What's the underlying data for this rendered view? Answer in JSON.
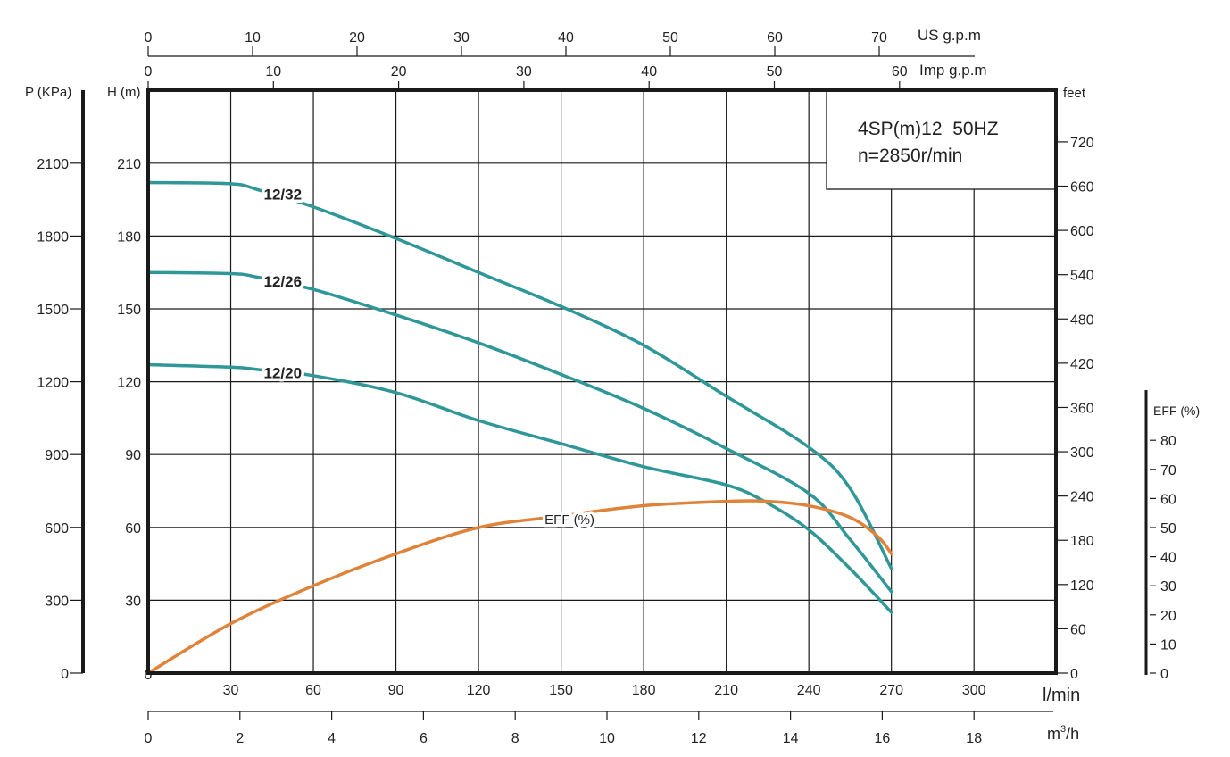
{
  "chart_data": {
    "type": "line",
    "info_box": {
      "line1": "4SP(m)12  50HZ",
      "line2": "n=2850r/min"
    },
    "x_axis": {
      "label": "l/min",
      "range": [
        0,
        330
      ],
      "ticks": [
        30,
        60,
        90,
        120,
        150,
        180,
        210,
        240,
        270,
        300
      ],
      "zero_label": "0"
    },
    "x_axis_m3h": {
      "label": "m³/h",
      "label_base": "m",
      "label_sup": "3",
      "label_tail": "/h",
      "ticks": [
        0,
        2,
        4,
        6,
        8,
        10,
        12,
        14,
        16,
        18
      ]
    },
    "x_axis_us_gpm": {
      "label": "US g.p.m",
      "ticks": [
        0,
        10,
        20,
        30,
        40,
        50,
        60,
        70
      ]
    },
    "x_axis_imp_gpm": {
      "label": "Imp g.p.m",
      "ticks": [
        0,
        10,
        20,
        30,
        40,
        50,
        60
      ]
    },
    "y_axis_head": {
      "label": "H (m)",
      "range": [
        0,
        240
      ],
      "ticks": [
        30,
        60,
        90,
        120,
        150,
        180,
        210
      ],
      "grid": true
    },
    "y_axis_pressure": {
      "label": "P (KPa)",
      "ticks": [
        0,
        300,
        600,
        900,
        1200,
        1500,
        1800,
        2100
      ]
    },
    "y_axis_feet": {
      "label": "feet",
      "ticks": [
        0,
        60,
        120,
        180,
        240,
        300,
        360,
        420,
        480,
        540,
        600,
        660,
        720
      ]
    },
    "y_axis_eff": {
      "label": "EFF (%)",
      "ticks": [
        0,
        10,
        20,
        30,
        40,
        50,
        60,
        70,
        80
      ]
    },
    "grid": true,
    "colors": {
      "head": "#2f9797",
      "eff": "#e0833a",
      "grid": "#1a1a1a"
    },
    "series": [
      {
        "name": "12/32",
        "axis": "head",
        "label_at": 42,
        "x": [
          0,
          30,
          40,
          60,
          90,
          120,
          150,
          180,
          210,
          240,
          255,
          270
        ],
        "y": [
          202,
          201.5,
          199,
          192,
          179,
          165,
          151,
          135,
          114,
          93,
          76,
          43
        ]
      },
      {
        "name": "12/26",
        "axis": "head",
        "label_at": 42,
        "x": [
          0,
          30,
          40,
          60,
          90,
          120,
          150,
          180,
          210,
          240,
          255,
          270
        ],
        "y": [
          165,
          164.5,
          163,
          158,
          147.5,
          136,
          123,
          109,
          92.5,
          74,
          55,
          33.5
        ]
      },
      {
        "name": "12/20",
        "axis": "head",
        "label_at": 42,
        "x": [
          0,
          30,
          40,
          60,
          90,
          120,
          150,
          180,
          210,
          225,
          240,
          255,
          270
        ],
        "y": [
          127,
          126,
          125,
          122.5,
          115.5,
          104,
          94.5,
          85,
          77.5,
          70,
          59,
          43,
          25
        ]
      },
      {
        "name": "EFF (%)",
        "axis": "eff",
        "label_at": 145,
        "x": [
          0,
          30,
          60,
          90,
          120,
          150,
          180,
          210,
          225,
          240,
          255,
          265,
          270
        ],
        "y": [
          0,
          17,
          30,
          41,
          50,
          54,
          57.5,
          59,
          59,
          57.5,
          53.5,
          47,
          41
        ]
      }
    ]
  }
}
